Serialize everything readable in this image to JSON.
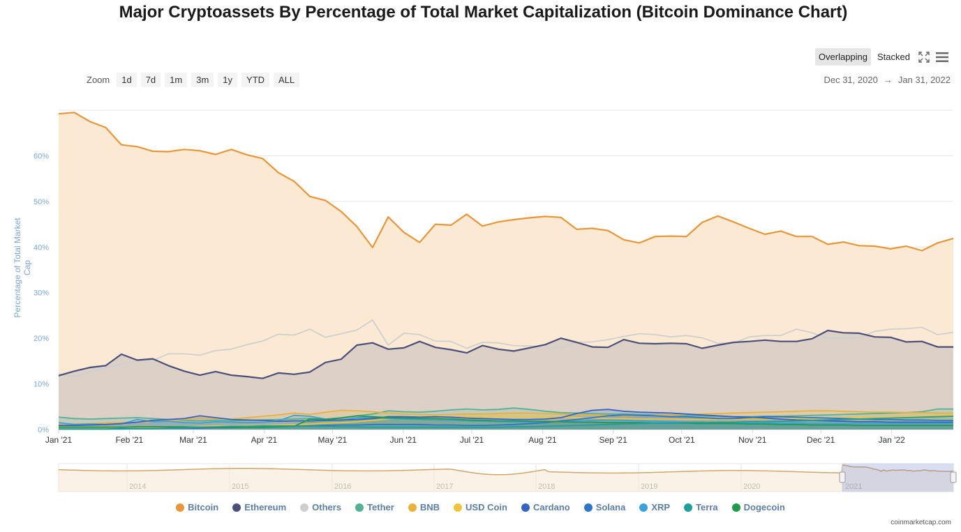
{
  "page": {
    "title": "Major Cryptoassets By Percentage of Total Market Capitalization (Bitcoin Dominance Chart)",
    "credit": "coinmarketcap.com"
  },
  "controls": {
    "zoom_label": "Zoom",
    "zoom_buttons": [
      "1d",
      "7d",
      "1m",
      "3m",
      "1y",
      "YTD",
      "ALL"
    ],
    "mode_buttons": [
      "Overlapping",
      "Stacked"
    ],
    "active_mode": "Overlapping",
    "range_start": "Dec 31, 2020",
    "range_arrow": "→",
    "range_end": "Jan 31, 2022",
    "fullscreen_icon": "fullscreen-icon",
    "menu_icon": "hamburger-menu-icon"
  },
  "chart_data": {
    "type": "area",
    "title": "Major Cryptoassets By Percentage of Total Market Capitalization (Bitcoin Dominance Chart)",
    "xlabel": "",
    "ylabel": "Percentage of Total Market Cap",
    "ylim": [
      0,
      70
    ],
    "yticks": [
      "0%",
      "10%",
      "20%",
      "30%",
      "40%",
      "50%",
      "60%"
    ],
    "ytick_values": [
      0,
      10,
      20,
      30,
      40,
      50,
      60
    ],
    "xticks": [
      "Jan '21",
      "Feb '21",
      "Mar '21",
      "Apr '21",
      "May '21",
      "Jun '21",
      "Jul '21",
      "Aug '21",
      "Sep '21",
      "Oct '21",
      "Nov '21",
      "Dec '21",
      "Jan '22"
    ],
    "xtick_weeks": [
      0,
      4.43,
      8.43,
      12.86,
      17.14,
      21.57,
      25.86,
      30.29,
      34.71,
      39,
      43.43,
      47.71,
      52.14
    ],
    "x_weeks_total": 56,
    "grid": true,
    "series": [
      {
        "name": "Bitcoin",
        "color": "#e8963a",
        "fill": "#fbe9d3",
        "values": [
          69.2,
          69.5,
          67.5,
          66.2,
          62.4,
          62.0,
          61.0,
          60.9,
          61.4,
          61.1,
          60.3,
          61.4,
          60.2,
          59.4,
          56.3,
          54.4,
          51.1,
          50.2,
          47.8,
          44.5,
          39.9,
          46.6,
          43.2,
          41.0,
          45.0,
          44.8,
          47.2,
          44.6,
          45.5,
          46.0,
          46.4,
          46.7,
          46.5,
          43.9,
          44.1,
          43.6,
          41.6,
          40.9,
          42.3,
          42.4,
          42.3,
          45.4,
          46.8,
          45.5,
          44.1,
          42.8,
          43.5,
          42.3,
          42.3,
          40.6,
          41.1,
          40.3,
          40.2,
          39.6,
          40.2,
          39.2,
          40.9,
          41.9
        ]
      },
      {
        "name": "Ethereum",
        "color": "#4a4f7a",
        "fill": "#ddd0c6",
        "values": [
          11.8,
          12.8,
          13.6,
          14.0,
          16.5,
          15.2,
          15.5,
          14.0,
          12.8,
          11.9,
          12.7,
          11.9,
          11.6,
          11.2,
          12.4,
          12.1,
          12.6,
          14.7,
          15.4,
          18.5,
          19.0,
          17.6,
          17.9,
          19.3,
          18.0,
          17.5,
          16.8,
          18.4,
          17.6,
          17.2,
          17.9,
          18.6,
          20.0,
          19.1,
          18.1,
          18.0,
          19.7,
          18.9,
          18.8,
          18.9,
          18.8,
          17.8,
          18.5,
          19.1,
          19.3,
          19.6,
          19.3,
          19.3,
          19.9,
          21.7,
          21.2,
          21.1,
          20.3,
          20.2,
          19.2,
          19.3,
          18.1,
          18.1
        ]
      },
      {
        "name": "Others",
        "color": "#cfcfcf",
        "fill": "none",
        "values": [
          12.2,
          11.6,
          12.6,
          13.5,
          14.3,
          15.0,
          15.1,
          16.6,
          16.6,
          16.3,
          17.3,
          17.6,
          18.6,
          19.4,
          20.9,
          20.7,
          22.0,
          20.2,
          21.0,
          21.8,
          24.0,
          18.5,
          21.1,
          20.8,
          19.4,
          19.3,
          17.8,
          19.1,
          19.0,
          18.4,
          18.3,
          18.1,
          17.9,
          19.1,
          19.2,
          19.7,
          20.4,
          21.0,
          20.8,
          20.3,
          20.6,
          20.1,
          18.9,
          18.9,
          20.3,
          20.6,
          20.6,
          22.0,
          21.2,
          20.0,
          20.0,
          20.2,
          21.5,
          22.0,
          22.1,
          22.4,
          20.8,
          21.3
        ]
      },
      {
        "name": "Tether",
        "color": "#53b295",
        "fill": "none",
        "values": [
          2.7,
          2.4,
          2.3,
          2.4,
          2.5,
          2.6,
          2.4,
          2.2,
          2.0,
          1.9,
          2.0,
          1.9,
          2.0,
          2.1,
          2.2,
          2.3,
          2.4,
          2.3,
          2.6,
          3.0,
          3.4,
          4.1,
          3.9,
          3.8,
          4.0,
          4.3,
          4.5,
          4.3,
          4.4,
          4.7,
          4.4,
          4.0,
          3.7,
          3.6,
          3.5,
          3.4,
          3.4,
          3.3,
          3.2,
          3.2,
          3.1,
          3.0,
          2.9,
          2.8,
          2.8,
          2.9,
          2.9,
          3.0,
          3.1,
          3.2,
          3.3,
          3.4,
          3.5,
          3.6,
          3.7,
          3.9,
          4.5,
          4.5
        ]
      },
      {
        "name": "BNB",
        "color": "#e8b23a",
        "fill": "none",
        "values": [
          1.3,
          1.2,
          1.3,
          1.4,
          1.5,
          1.6,
          1.7,
          2.0,
          2.2,
          2.5,
          2.4,
          2.3,
          2.6,
          2.9,
          3.2,
          3.6,
          3.3,
          3.8,
          4.2,
          4.1,
          3.9,
          3.6,
          3.4,
          3.3,
          3.2,
          3.3,
          3.4,
          3.4,
          3.5,
          3.6,
          3.6,
          3.5,
          3.4,
          3.3,
          3.2,
          3.1,
          3.0,
          3.0,
          3.1,
          3.2,
          3.3,
          3.4,
          3.5,
          3.6,
          3.7,
          3.8,
          3.9,
          4.0,
          4.1,
          4.1,
          4.0,
          3.9,
          3.8,
          3.8,
          3.7,
          3.7,
          3.6,
          3.6
        ]
      },
      {
        "name": "USD Coin",
        "color": "#f0c33c",
        "fill": "none",
        "values": [
          0.3,
          0.3,
          0.3,
          0.3,
          0.4,
          0.4,
          0.4,
          0.5,
          0.6,
          0.7,
          0.8,
          0.8,
          0.9,
          0.9,
          1.0,
          1.1,
          1.2,
          1.4,
          1.5,
          1.7,
          2.0,
          2.3,
          2.4,
          2.5,
          2.6,
          2.7,
          2.8,
          2.9,
          3.0,
          3.0,
          2.9,
          2.8,
          2.7,
          2.6,
          2.5,
          2.4,
          2.4,
          2.3,
          2.3,
          2.3,
          2.2,
          2.2,
          2.2,
          2.2,
          2.3,
          2.3,
          2.4,
          2.4,
          2.5,
          2.5,
          2.6,
          2.6,
          2.7,
          2.8,
          2.9,
          3.0,
          3.1,
          3.2
        ]
      },
      {
        "name": "Cardano",
        "color": "#3463c4",
        "fill": "none",
        "values": [
          0.9,
          0.9,
          1.0,
          1.1,
          1.3,
          1.6,
          2.0,
          2.2,
          2.4,
          3.0,
          2.6,
          2.2,
          2.1,
          2.0,
          1.8,
          1.9,
          1.9,
          2.0,
          2.1,
          2.2,
          2.4,
          2.8,
          2.8,
          2.7,
          2.8,
          2.7,
          2.5,
          2.4,
          2.3,
          2.2,
          2.2,
          2.3,
          2.6,
          3.5,
          4.2,
          4.4,
          4.0,
          3.8,
          3.7,
          3.6,
          3.4,
          3.2,
          3.0,
          2.8,
          2.7,
          2.5,
          2.3,
          2.1,
          2.0,
          1.9,
          1.8,
          1.7,
          1.7,
          1.6,
          1.6,
          1.6,
          1.6,
          1.6
        ]
      },
      {
        "name": "Solana",
        "color": "#2d75c9",
        "fill": "none",
        "values": [
          0.1,
          0.1,
          0.1,
          0.1,
          0.2,
          0.2,
          0.2,
          0.3,
          0.3,
          0.3,
          0.4,
          0.4,
          0.5,
          0.5,
          0.6,
          0.7,
          0.8,
          0.9,
          1.0,
          1.0,
          1.1,
          1.1,
          1.1,
          1.1,
          1.0,
          1.0,
          0.9,
          0.9,
          1.0,
          1.1,
          1.3,
          1.5,
          1.9,
          2.2,
          2.6,
          3.0,
          3.2,
          3.1,
          3.0,
          2.8,
          2.8,
          2.6,
          2.4,
          2.4,
          2.6,
          2.8,
          2.8,
          2.7,
          2.6,
          2.5,
          2.4,
          2.3,
          2.2,
          2.2,
          2.1,
          2.1,
          2.0,
          2.0
        ]
      },
      {
        "name": "XRP",
        "color": "#3ba3d6",
        "fill": "none",
        "values": [
          1.5,
          1.1,
          1.2,
          1.1,
          1.2,
          2.2,
          1.7,
          1.8,
          1.5,
          1.4,
          1.7,
          1.6,
          1.5,
          1.6,
          1.9,
          3.1,
          2.9,
          2.3,
          2.0,
          2.6,
          2.6,
          2.4,
          2.3,
          2.2,
          2.1,
          2.0,
          1.9,
          1.8,
          1.7,
          1.6,
          1.6,
          1.7,
          1.8,
          1.9,
          2.0,
          2.1,
          2.0,
          1.9,
          1.8,
          1.7,
          1.6,
          1.6,
          1.5,
          1.5,
          1.4,
          1.4,
          1.4,
          1.4,
          1.3,
          1.3,
          1.3,
          1.3,
          1.3,
          1.3,
          1.3,
          1.3,
          1.3,
          1.3
        ]
      },
      {
        "name": "Terra",
        "color": "#1f9e9e",
        "fill": "none",
        "values": [
          0.1,
          0.1,
          0.1,
          0.1,
          0.1,
          0.2,
          0.2,
          0.3,
          0.4,
          0.5,
          0.6,
          0.7,
          0.7,
          0.8,
          0.8,
          0.8,
          0.7,
          0.7,
          0.6,
          0.6,
          0.5,
          0.5,
          0.5,
          0.5,
          0.5,
          0.5,
          0.5,
          0.5,
          0.5,
          0.6,
          0.6,
          0.7,
          0.8,
          0.9,
          1.0,
          1.1,
          1.2,
          1.3,
          1.4,
          1.4,
          1.5,
          1.5,
          1.6,
          1.6,
          1.7,
          1.7,
          1.8,
          1.9,
          2.0,
          2.1,
          2.2,
          2.3,
          2.4,
          2.5,
          2.6,
          2.7,
          2.8,
          2.9
        ]
      },
      {
        "name": "Dogecoin",
        "color": "#1e9a4a",
        "fill": "none",
        "values": [
          0.5,
          0.5,
          0.5,
          0.5,
          0.5,
          0.6,
          0.6,
          0.6,
          0.6,
          0.5,
          0.5,
          0.5,
          0.5,
          0.5,
          0.6,
          0.7,
          2.3,
          2.2,
          2.5,
          3.0,
          2.8,
          2.6,
          2.5,
          2.4,
          2.4,
          2.3,
          2.1,
          2.0,
          1.9,
          1.9,
          1.8,
          1.8,
          1.7,
          1.6,
          1.6,
          1.5,
          1.5,
          1.5,
          1.4,
          1.4,
          1.4,
          1.3,
          1.3,
          1.3,
          1.2,
          1.2,
          1.1,
          1.1,
          1.0,
          1.0,
          1.0,
          0.9,
          0.9,
          0.9,
          0.9,
          0.9,
          0.9,
          0.9
        ]
      }
    ],
    "navigator": {
      "labels": [
        "2014",
        "2015",
        "2016",
        "2017",
        "2018",
        "2019",
        "2020",
        "2021"
      ]
    }
  }
}
